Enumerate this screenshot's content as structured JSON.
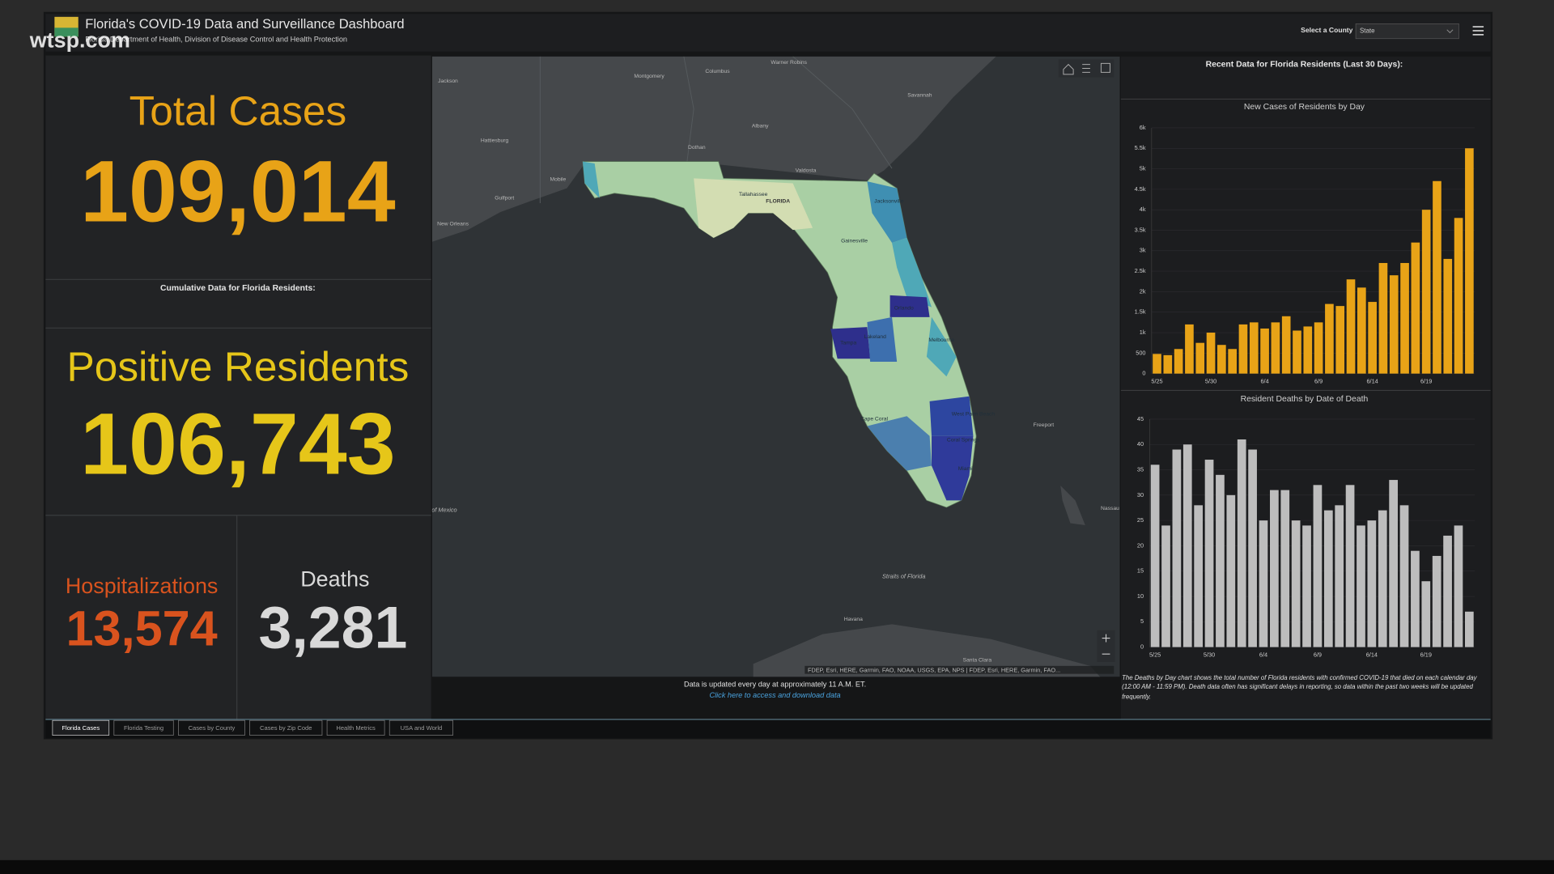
{
  "watermark": "wtsp.com",
  "header": {
    "title": "Florida's COVID-19 Data and Surveillance Dashboard",
    "subtitle": "Florida Department of Health, Division of Disease Control and Health Protection",
    "county_label": "Select a County",
    "county_value": "State"
  },
  "kpis": {
    "total_cases": {
      "label": "Total Cases",
      "value": "109,014"
    },
    "cumulative_label": "Cumulative Data for Florida Residents:",
    "positive_residents": {
      "label": "Positive Residents",
      "value": "106,743"
    },
    "hospitalizations": {
      "label": "Hospitalizations",
      "value": "13,574"
    },
    "deaths": {
      "label": "Deaths",
      "value": "3,281"
    }
  },
  "map": {
    "labels": [
      "Jackson",
      "Montgomery",
      "Columbus",
      "Warner Robins",
      "Savannah",
      "Hattiesburg",
      "Dothan",
      "Albany",
      "Mobile",
      "Gulfport",
      "Valdosta",
      "New Orleans",
      "Tallahassee",
      "FLORIDA",
      "Jacksonville",
      "Gainesville",
      "Orlando",
      "Tampa",
      "Lakeland",
      "Melbourne",
      "West Palm Beach",
      "Cape Coral",
      "Coral Springs",
      "Miami",
      "Freeport",
      "Nassau",
      "Havana",
      "Santa Clara",
      "Straits of Florida",
      "Gulf of Mexico"
    ],
    "attribution": "FDEP, Esri, HERE, Garmin, FAO, NOAA, USGS, EPA, NPS | FDEP, Esri, HERE, Garmin, FAO...",
    "note": "Data is updated every day at approximately 11 A.M. ET.",
    "link": "Click here to access and download data"
  },
  "recent_title": "Recent Data for Florida Residents (Last 30 Days):",
  "charts": [
    {
      "type": "bar",
      "title": "New Cases of Residents by Day",
      "categories": [
        "5/25",
        null,
        null,
        null,
        null,
        "5/30",
        null,
        null,
        null,
        null,
        "6/4",
        null,
        null,
        null,
        null,
        "6/9",
        null,
        null,
        null,
        null,
        "6/14",
        null,
        null,
        null,
        null,
        "6/19",
        null,
        null,
        null,
        null
      ],
      "values": [
        480,
        450,
        600,
        1200,
        750,
        1000,
        700,
        600,
        1200,
        1250,
        1100,
        1250,
        1400,
        1050,
        1150,
        1250,
        1700,
        1650,
        2300,
        2100,
        1750,
        2700,
        2400,
        2700,
        3200,
        4000,
        4700,
        2800,
        3800,
        5500
      ],
      "color": "#e8a317",
      "ylim": [
        0,
        6000
      ],
      "yticks": [
        0,
        500,
        {
          "value": 1000,
          "label": "1k"
        },
        {
          "value": 1500,
          "label": "1.5k"
        },
        {
          "value": 2000,
          "label": "2k"
        },
        {
          "value": 2500,
          "label": "2.5k"
        },
        {
          "value": 3000,
          "label": "3k"
        },
        {
          "value": 3500,
          "label": "3.5k"
        },
        {
          "value": 4000,
          "label": "4k"
        },
        {
          "value": 4500,
          "label": "4.5k"
        },
        {
          "value": 5000,
          "label": "5k"
        },
        {
          "value": 5500,
          "label": "5.5k"
        },
        {
          "value": 6000,
          "label": "6k"
        }
      ],
      "grid": true
    },
    {
      "type": "bar",
      "title": "Resident Deaths by Date of Death",
      "categories": [
        "5/25",
        null,
        null,
        null,
        null,
        "5/30",
        null,
        null,
        null,
        null,
        "6/4",
        null,
        null,
        null,
        null,
        "6/9",
        null,
        null,
        null,
        null,
        "6/14",
        null,
        null,
        null,
        null,
        "6/19",
        null,
        null,
        null,
        null
      ],
      "values": [
        36,
        24,
        39,
        40,
        28,
        37,
        34,
        30,
        41,
        39,
        25,
        31,
        31,
        25,
        24,
        32,
        27,
        28,
        32,
        24,
        25,
        27,
        33,
        28,
        19,
        13,
        18,
        22,
        24,
        7
      ],
      "color": "#bdbdbd",
      "ylim": [
        0,
        45
      ],
      "yticks": [
        0,
        5,
        10,
        15,
        20,
        25,
        30,
        35,
        40,
        45
      ],
      "grid": true,
      "note": "The Deaths by Day chart shows the total number of Florida residents with confirmed COVID-19 that died on each calendar day (12:00 AM - 11:59 PM). Death data often has significant delays in reporting, so data within the past two weeks will be updated frequently."
    }
  ],
  "tabs": [
    "Florida Cases",
    "Florida Testing",
    "Cases by County",
    "Cases by Zip Code",
    "Health Metrics",
    "USA and World"
  ]
}
